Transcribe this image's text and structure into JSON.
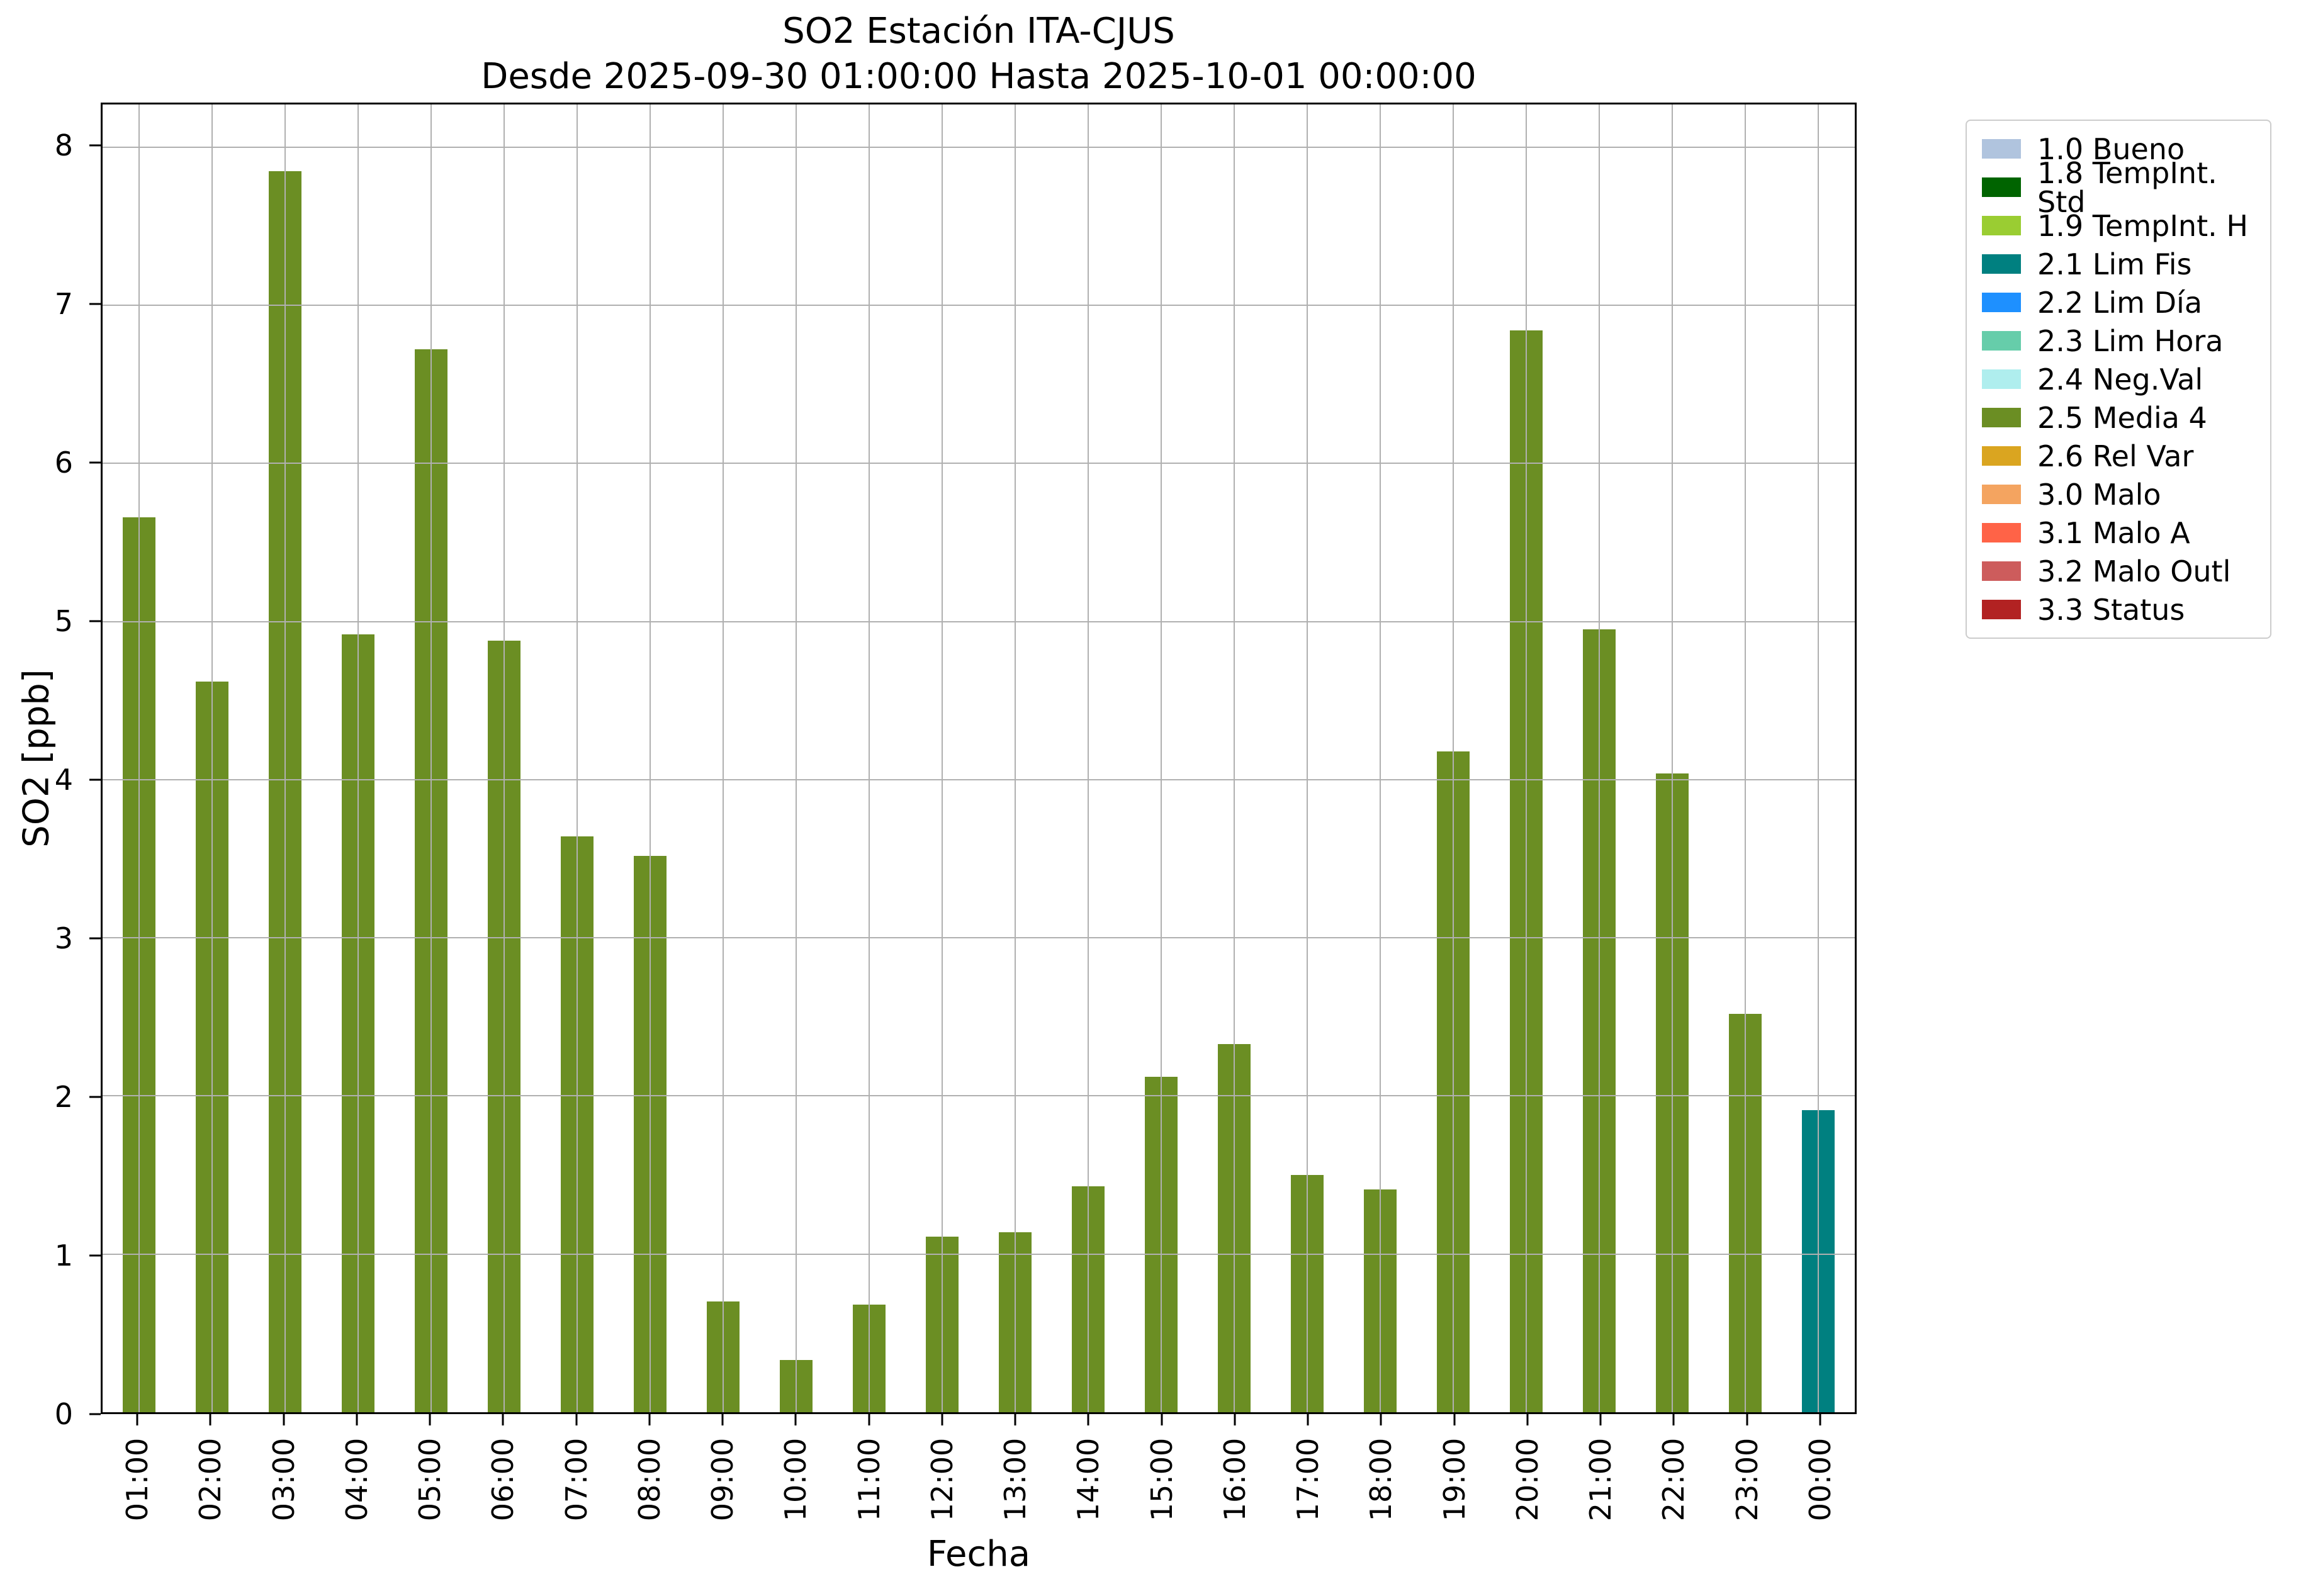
{
  "figure": {
    "title": "SO2 Estación ITA-CJUS",
    "subtitle": "Desde 2025-09-30 01:00:00 Hasta 2025-10-01 00:00:00"
  },
  "chart_data": {
    "type": "bar",
    "title": "SO2 Estación ITA-CJUS",
    "subtitle": "Desde 2025-09-30 01:00:00 Hasta 2025-10-01 00:00:00",
    "xlabel": "Fecha",
    "ylabel": "SO2 [ppb]",
    "ylim": [
      0,
      8.27
    ],
    "yticks": [
      0,
      1,
      2,
      3,
      4,
      5,
      6,
      7,
      8
    ],
    "grid": true,
    "grid_color": "#b0b0b0",
    "bar_width_fraction": 0.45,
    "categories": [
      "01:00",
      "02:00",
      "03:00",
      "04:00",
      "05:00",
      "06:00",
      "07:00",
      "08:00",
      "09:00",
      "10:00",
      "11:00",
      "12:00",
      "13:00",
      "14:00",
      "15:00",
      "16:00",
      "17:00",
      "18:00",
      "19:00",
      "20:00",
      "21:00",
      "22:00",
      "23:00",
      "00:00"
    ],
    "values": [
      5.66,
      4.62,
      7.85,
      4.92,
      6.72,
      4.88,
      3.64,
      3.52,
      0.7,
      0.33,
      0.68,
      1.11,
      1.14,
      1.43,
      2.12,
      2.33,
      1.5,
      1.41,
      4.18,
      6.84,
      4.95,
      4.04,
      2.52,
      1.91
    ],
    "bar_colors": [
      "#6b8e23",
      "#6b8e23",
      "#6b8e23",
      "#6b8e23",
      "#6b8e23",
      "#6b8e23",
      "#6b8e23",
      "#6b8e23",
      "#6b8e23",
      "#6b8e23",
      "#6b8e23",
      "#6b8e23",
      "#6b8e23",
      "#6b8e23",
      "#6b8e23",
      "#6b8e23",
      "#6b8e23",
      "#6b8e23",
      "#6b8e23",
      "#6b8e23",
      "#6b8e23",
      "#6b8e23",
      "#6b8e23",
      "#008080"
    ],
    "bar_flags": [
      "2.5 Media 4",
      "2.5 Media 4",
      "2.5 Media 4",
      "2.5 Media 4",
      "2.5 Media 4",
      "2.5 Media 4",
      "2.5 Media 4",
      "2.5 Media 4",
      "2.5 Media 4",
      "2.5 Media 4",
      "2.5 Media 4",
      "2.5 Media 4",
      "2.5 Media 4",
      "2.5 Media 4",
      "2.5 Media 4",
      "2.5 Media 4",
      "2.5 Media 4",
      "2.5 Media 4",
      "2.5 Media 4",
      "2.5 Media 4",
      "2.5 Media 4",
      "2.5 Media 4",
      "2.5 Media 4",
      "2.1 Lim Fis"
    ],
    "legend": {
      "position": "outside upper right",
      "entries": [
        {
          "label": "1.0 Bueno",
          "color": "#b0c4de"
        },
        {
          "label": "1.8 TempInt. Std",
          "color": "#006400"
        },
        {
          "label": "1.9 TempInt. H",
          "color": "#9acd32"
        },
        {
          "label": "2.1 Lim Fis",
          "color": "#008080"
        },
        {
          "label": "2.2 Lim Día",
          "color": "#1e90ff"
        },
        {
          "label": "2.3 Lim Hora",
          "color": "#66cdaa"
        },
        {
          "label": "2.4 Neg.Val",
          "color": "#afeeee"
        },
        {
          "label": "2.5 Media 4",
          "color": "#6b8e23"
        },
        {
          "label": "2.6 Rel Var",
          "color": "#daa520"
        },
        {
          "label": "3.0 Malo",
          "color": "#f4a460"
        },
        {
          "label": "3.1 Malo A",
          "color": "#ff6347"
        },
        {
          "label": "3.2 Malo Outl",
          "color": "#cd5c5c"
        },
        {
          "label": "3.3 Status",
          "color": "#b22222"
        }
      ]
    }
  }
}
